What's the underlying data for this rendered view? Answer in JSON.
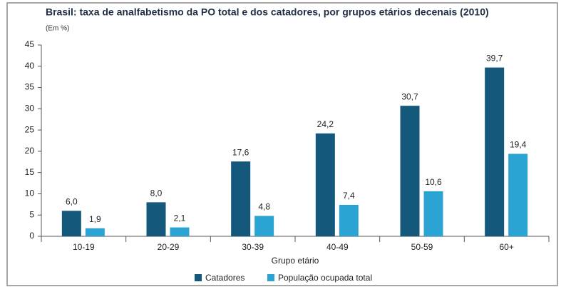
{
  "chart_data": {
    "type": "bar",
    "title": "Brasil: taxa de analfabetismo da PO total e dos catadores, por grupos etários decenais (2010)",
    "subtitle": "(Em %)",
    "x_label": "Grupo etário",
    "categories": [
      "10-19",
      "20-29",
      "30-39",
      "40-49",
      "50-59",
      "60+"
    ],
    "series": [
      {
        "name": "Catadores",
        "color": "#14587c",
        "values": [
          6.0,
          8.0,
          17.6,
          24.2,
          30.7,
          39.7
        ],
        "value_labels": [
          "6,0",
          "8,0",
          "17,6",
          "24,2",
          "30,7",
          "39,7"
        ]
      },
      {
        "name": "População ocupada total",
        "color": "#2ba4d4",
        "values": [
          1.9,
          2.1,
          4.8,
          7.4,
          10.6,
          19.4
        ],
        "value_labels": [
          "1,9",
          "2,1",
          "4,8",
          "7,4",
          "10,6",
          "19,4"
        ]
      }
    ],
    "ylim": [
      0,
      45
    ],
    "yticks": [
      0,
      5,
      10,
      15,
      20,
      25,
      30,
      35,
      40,
      45
    ],
    "grid": false
  }
}
